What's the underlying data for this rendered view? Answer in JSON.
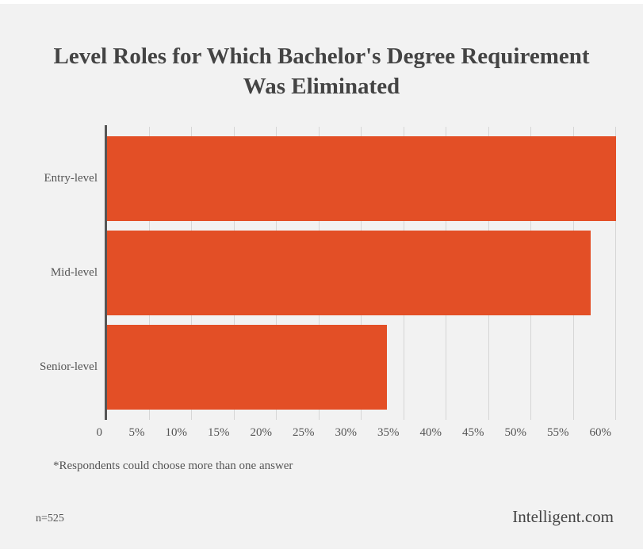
{
  "chart_data": {
    "type": "bar",
    "orientation": "horizontal",
    "title": "Level Roles for Which Bachelor's Degree Requirement Was Eliminated",
    "title_lines": [
      "Level Roles for Which Bachelor's Degree Requirement",
      "Was Eliminated"
    ],
    "categories": [
      "Entry-level",
      "Mid-level",
      "Senior-level"
    ],
    "values": [
      60,
      57,
      33
    ],
    "unit": "%",
    "xlabel": "",
    "ylabel": "",
    "xlim": [
      0,
      60
    ],
    "x_ticks": [
      "0",
      "5%",
      "10%",
      "15%",
      "20%",
      "25%",
      "30%",
      "35%",
      "40%",
      "45%",
      "50%",
      "55%",
      "60%"
    ],
    "grid": true,
    "legend": null,
    "bar_color": "#e34f26"
  },
  "footnote": "*Respondents could choose more than one answer",
  "sample_size": "n=525",
  "brand": "Intelligent.com",
  "colors": {
    "background": "#f2f2f2",
    "bar": "#e34f26",
    "text": "#555555",
    "title": "#444444"
  }
}
